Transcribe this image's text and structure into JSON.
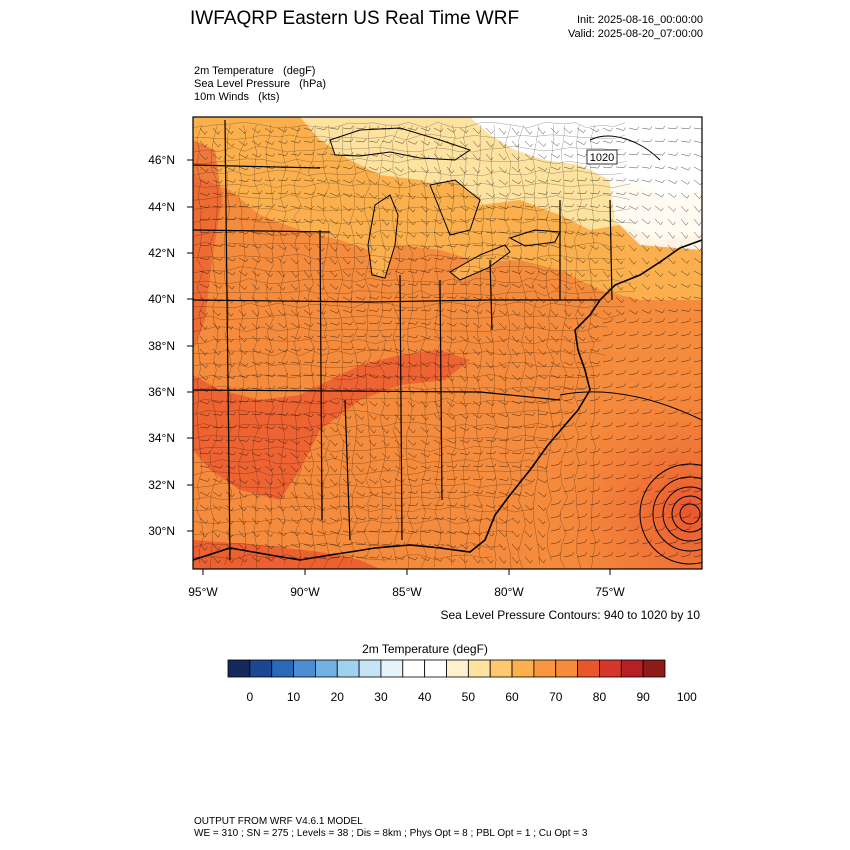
{
  "header": {
    "title": "IWFAQRP Eastern US Real Time WRF",
    "init": "Init: 2025-08-16_00:00:00",
    "valid": "Valid: 2025-08-20_07:00:00"
  },
  "fields": [
    {
      "label": "2m Temperature   (degF)"
    },
    {
      "label": "Sea Level Pressure   (hPa)"
    },
    {
      "label": "10m Winds   (kts)"
    }
  ],
  "map": {
    "lat_labels": [
      "46°N",
      "44°N",
      "42°N",
      "40°N",
      "38°N",
      "36°N",
      "34°N",
      "32°N",
      "30°N"
    ],
    "lon_labels": [
      "95°W",
      "90°W",
      "85°W",
      "80°W",
      "75°W"
    ],
    "isobar_label": "1020",
    "colors": {
      "hot": "#e9562e",
      "warm": "#f58b3c",
      "mild": "#fbb04d",
      "cool": "#fde2a0",
      "cold": "#ffffff"
    }
  },
  "contour_note": "Sea Level Pressure Contours: 940 to 1020 by 10",
  "colorbar": {
    "title": "2m Temperature  (degF)",
    "tick_labels": [
      "0",
      "10",
      "20",
      "30",
      "40",
      "50",
      "60",
      "70",
      "80",
      "90",
      "100"
    ],
    "colors": [
      "#17295c",
      "#1e4793",
      "#2b68b8",
      "#4b8fd0",
      "#71b2e2",
      "#a0d2f0",
      "#c5e5f6",
      "#e6f3fb",
      "#ffffff",
      "#ffffff",
      "#fff1cf",
      "#fde2a0",
      "#fdc870",
      "#fbb04d",
      "#f9963f",
      "#f58b3c",
      "#e9562e",
      "#d6372a",
      "#b81f25",
      "#8c1d18"
    ]
  },
  "footer": {
    "line1": "OUTPUT FROM WRF V4.6.1 MODEL",
    "line2": "WE = 310 ; SN = 275 ; Levels = 38 ; Dis = 8km ; Phys Opt = 8 ; PBL Opt = 1 ; Cu Opt = 3"
  }
}
